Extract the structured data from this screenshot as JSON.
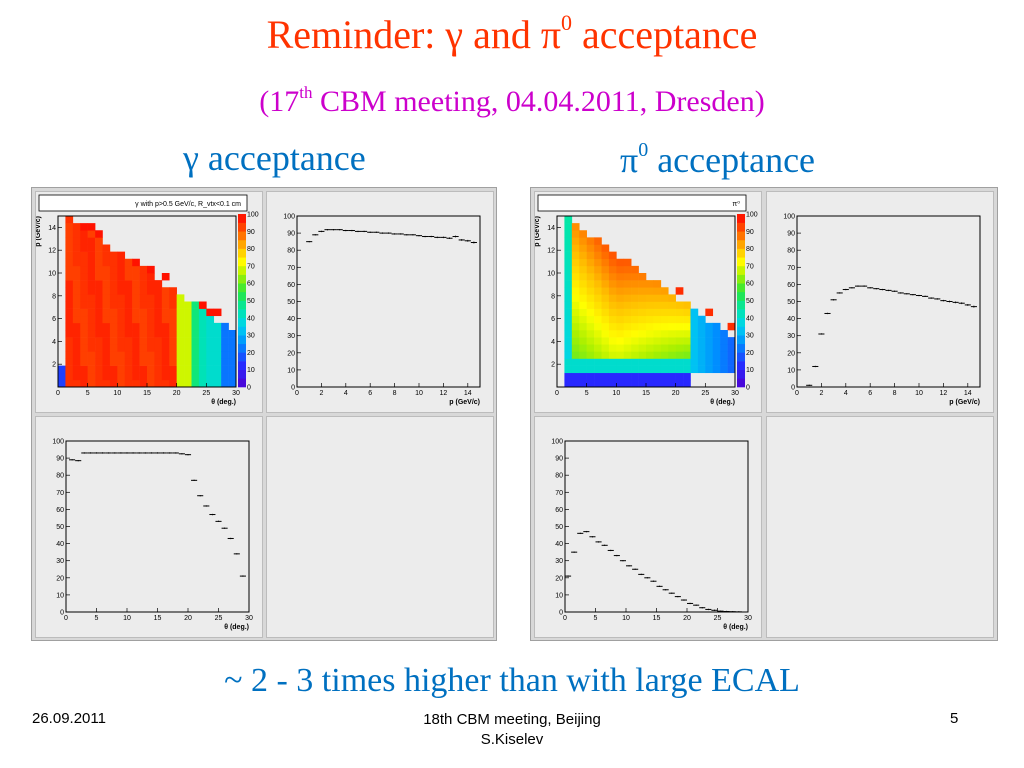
{
  "title": {
    "prefix": "Reminder: γ and π",
    "sup": "0",
    "suffix": " acceptance"
  },
  "subtitle": {
    "prefix": "(17",
    "sup": "th",
    "suffix": " CBM meeting, 04.04.2011, Dresden)"
  },
  "sections": {
    "gamma": {
      "label": "γ acceptance"
    },
    "pi0": {
      "label_prefix": "π",
      "sup": "0",
      "label_suffix": " acceptance"
    }
  },
  "note": "~ 2 - 3 times higher than with large ECAL",
  "footer": {
    "date": "26.09.2011",
    "meeting": "18th CBM  meeting, Beijing",
    "author": "S.Kiselev",
    "page": "5"
  },
  "colors": {
    "title": "#ff3300",
    "subtitle": "#cc00cc",
    "section": "#0070c0"
  },
  "chart_data": [
    {
      "type": "heatmap",
      "id": "gamma-2d",
      "title": "γ with p>0.5 GeV/c, R_vtx<0.1 cm",
      "xlabel": "θ (deg.)",
      "ylabel": "p (GeV/c)",
      "xlim": [
        0,
        30
      ],
      "ylim": [
        0,
        15
      ],
      "zlim": [
        0,
        100
      ],
      "xticks": [
        0,
        5,
        10,
        15,
        20,
        25,
        30
      ],
      "yticks": [
        2,
        4,
        6,
        8,
        10,
        12,
        14
      ],
      "zticks": [
        0,
        10,
        20,
        30,
        40,
        50,
        60,
        70,
        80,
        90,
        100
      ]
    },
    {
      "type": "scatter",
      "id": "gamma-vs-p",
      "xlabel": "p (GeV/c)",
      "ylabel": "",
      "xlim": [
        0,
        15
      ],
      "ylim": [
        0,
        100
      ],
      "xticks": [
        0,
        2,
        4,
        6,
        8,
        10,
        12,
        14
      ],
      "yticks": [
        0,
        10,
        20,
        30,
        40,
        50,
        60,
        70,
        80,
        90,
        100
      ],
      "x": [
        1,
        1.5,
        2,
        2.5,
        3,
        3.5,
        4,
        4.5,
        5,
        5.5,
        6,
        6.5,
        7,
        7.5,
        8,
        8.5,
        9,
        9.5,
        10,
        10.5,
        11,
        11.5,
        12,
        12.5,
        13,
        13.5,
        14,
        14.5
      ],
      "y": [
        85,
        89,
        91,
        92,
        92,
        92,
        91.5,
        91.5,
        91,
        91,
        90.5,
        90.5,
        90,
        90,
        89.5,
        89.5,
        89,
        89,
        88.5,
        88,
        88,
        87.5,
        87.5,
        87,
        88,
        86,
        85.5,
        84.5
      ]
    },
    {
      "type": "heatmap",
      "id": "pi0-2d",
      "title": "π⁰",
      "xlabel": "θ (deg.)",
      "ylabel": "p (GeV/c)",
      "xlim": [
        0,
        30
      ],
      "ylim": [
        0,
        15
      ],
      "zlim": [
        0,
        100
      ],
      "xticks": [
        0,
        5,
        10,
        15,
        20,
        25,
        30
      ],
      "yticks": [
        2,
        4,
        6,
        8,
        10,
        12,
        14
      ],
      "zticks": [
        0,
        10,
        20,
        30,
        40,
        50,
        60,
        70,
        80,
        90,
        100
      ]
    },
    {
      "type": "scatter",
      "id": "pi0-vs-p",
      "xlabel": "p (GeV/c)",
      "ylabel": "",
      "xlim": [
        0,
        15
      ],
      "ylim": [
        0,
        100
      ],
      "xticks": [
        0,
        2,
        4,
        6,
        8,
        10,
        12,
        14
      ],
      "yticks": [
        0,
        10,
        20,
        30,
        40,
        50,
        60,
        70,
        80,
        90,
        100
      ],
      "x": [
        1,
        1.5,
        2,
        2.5,
        3,
        3.5,
        4,
        4.5,
        5,
        5.5,
        6,
        6.5,
        7,
        7.5,
        8,
        8.5,
        9,
        9.5,
        10,
        10.5,
        11,
        11.5,
        12,
        12.5,
        13,
        13.5,
        14,
        14.5
      ],
      "y": [
        1,
        12,
        31,
        43,
        51,
        55,
        57,
        58,
        59,
        59,
        58,
        57.5,
        57,
        56.5,
        56,
        55,
        54.5,
        54,
        53.5,
        53,
        52,
        51.5,
        50.5,
        50,
        49.5,
        49,
        48,
        47
      ]
    },
    {
      "type": "scatter",
      "id": "gamma-vs-theta",
      "xlabel": "θ (deg.)",
      "ylabel": "",
      "xlim": [
        0,
        30
      ],
      "ylim": [
        0,
        100
      ],
      "xticks": [
        0,
        5,
        10,
        15,
        20,
        25,
        30
      ],
      "yticks": [
        0,
        10,
        20,
        30,
        40,
        50,
        60,
        70,
        80,
        90,
        100
      ],
      "x": [
        1,
        2,
        3,
        4,
        5,
        6,
        7,
        8,
        9,
        10,
        11,
        12,
        13,
        14,
        15,
        16,
        17,
        18,
        19,
        20,
        21,
        22,
        23,
        24,
        25,
        26,
        27,
        28,
        29
      ],
      "y": [
        89,
        88.5,
        93,
        93,
        93,
        93,
        93,
        93,
        93,
        93,
        93,
        93,
        93,
        93,
        93,
        93,
        93,
        93,
        92.5,
        92,
        77,
        68,
        62,
        57,
        53,
        49,
        43,
        34,
        21
      ]
    },
    {
      "type": "scatter",
      "id": "pi0-vs-theta",
      "xlabel": "θ (deg.)",
      "ylabel": "",
      "xlim": [
        0,
        30
      ],
      "ylim": [
        0,
        100
      ],
      "xticks": [
        0,
        5,
        10,
        15,
        20,
        25,
        30
      ],
      "yticks": [
        0,
        10,
        20,
        30,
        40,
        50,
        60,
        70,
        80,
        90,
        100
      ],
      "x": [
        0.5,
        1.5,
        2.5,
        3.5,
        4.5,
        5.5,
        6.5,
        7.5,
        8.5,
        9.5,
        10.5,
        11.5,
        12.5,
        13.5,
        14.5,
        15.5,
        16.5,
        17.5,
        18.5,
        19.5,
        20.5,
        21.5,
        22.5,
        23.5,
        24.5,
        25.5,
        26.5,
        27.5,
        28.5
      ],
      "y": [
        21,
        35,
        46,
        47,
        44,
        41,
        39,
        36,
        33,
        30,
        27,
        25,
        22,
        20,
        18,
        15,
        13,
        11,
        9,
        7,
        5,
        4,
        2.5,
        1.5,
        1,
        0.5,
        0.3,
        0.2,
        0.1
      ]
    }
  ]
}
